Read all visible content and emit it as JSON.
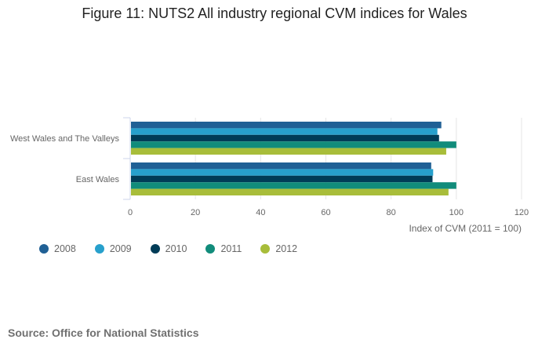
{
  "chart_data": {
    "type": "bar",
    "orientation": "horizontal",
    "title": "Figure 11: NUTS2 All industry regional CVM indices for Wales",
    "categories": [
      "West Wales and The Valleys",
      "East Wales"
    ],
    "series": [
      {
        "name": "2008",
        "color": "#206095",
        "values": [
          95.4,
          92.3
        ]
      },
      {
        "name": "2009",
        "color": "#27a0cc",
        "values": [
          94.2,
          92.9
        ]
      },
      {
        "name": "2010",
        "color": "#003c57",
        "values": [
          94.7,
          92.7
        ]
      },
      {
        "name": "2011",
        "color": "#118c7b",
        "values": [
          100,
          100
        ]
      },
      {
        "name": "2012",
        "color": "#a8bd3a",
        "values": [
          96.9,
          97.6
        ]
      }
    ],
    "xlabel": "Index of CVM (2011 = 100)",
    "xlim": [
      0,
      120
    ],
    "xticks": [
      0,
      20,
      40,
      60,
      80,
      100,
      120
    ],
    "grid": true,
    "legend": "bottom-left"
  },
  "source": "Source: Office for National Statistics"
}
